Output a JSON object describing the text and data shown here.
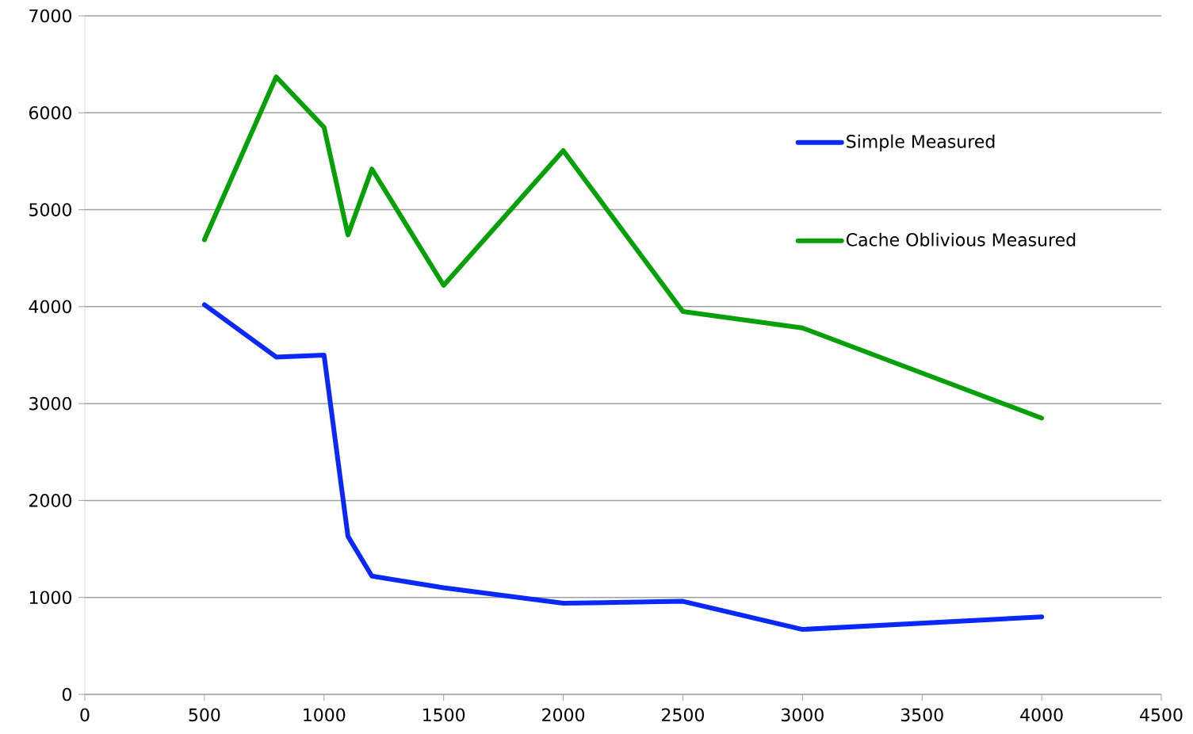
{
  "chart_data": {
    "type": "line",
    "x": [
      500,
      800,
      1000,
      1100,
      1200,
      1500,
      2000,
      2500,
      3000,
      4000
    ],
    "series": [
      {
        "name": "Simple Measured",
        "color": "#0a28f8",
        "values": [
          4020,
          3480,
          3500,
          1630,
          1220,
          1100,
          940,
          960,
          670,
          800
        ]
      },
      {
        "name": "Cache Oblivious Measured",
        "color": "#08a008",
        "values": [
          4690,
          6370,
          5850,
          4740,
          5420,
          4220,
          5610,
          3950,
          3780,
          2850
        ]
      }
    ],
    "xlim": [
      0,
      4500
    ],
    "xticks": [
      0,
      500,
      1000,
      1500,
      2000,
      2500,
      3000,
      3500,
      4000,
      4500
    ],
    "ylim": [
      0,
      7000
    ],
    "yticks": [
      0,
      1000,
      2000,
      3000,
      4000,
      5000,
      6000,
      7000
    ],
    "grid": "y",
    "legend": "top right",
    "marker": "none",
    "line_style": "solid"
  }
}
